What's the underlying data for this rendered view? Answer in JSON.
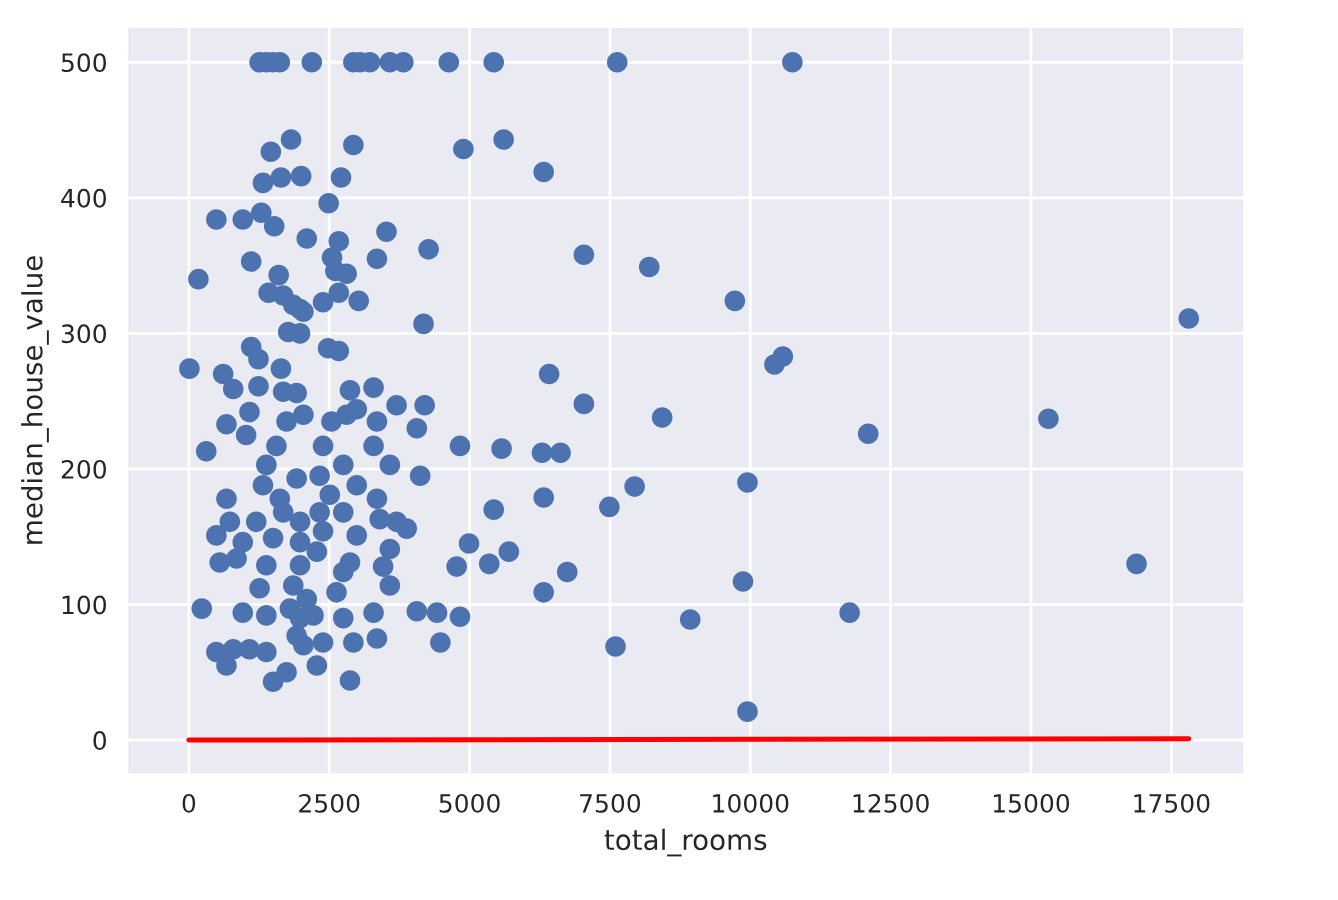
{
  "chart_data": {
    "type": "scatter",
    "xlabel": "total_rooms",
    "ylabel": "median_house_value",
    "xlim": [
      -1100,
      18800
    ],
    "ylim": [
      -25,
      526
    ],
    "xticks": [
      0,
      2500,
      5000,
      7500,
      10000,
      12500,
      15000,
      17500
    ],
    "yticks": [
      0,
      100,
      200,
      300,
      400,
      500
    ],
    "grid": true,
    "series": [
      {
        "marker": "circle",
        "color": "#4c72b0",
        "x": [
          1260,
          1380,
          1500,
          1620,
          2190,
          2930,
          3050,
          3225,
          3580,
          3820,
          4630,
          5430,
          7630,
          10750,
          5607,
          6320,
          7036,
          8200,
          9725,
          17810,
          6417,
          10430,
          10580,
          7036,
          8430,
          12100,
          15310,
          5570,
          6290,
          6620,
          9950,
          7940,
          6320,
          5430,
          7490,
          5700,
          5350,
          6740,
          6320,
          16880,
          9870,
          8930,
          11770,
          7600,
          9950,
          1820,
          1460,
          2930,
          4890,
          1320,
          1640,
          2000,
          2710,
          2490,
          490,
          960,
          1290,
          1520,
          2100,
          2670,
          3520,
          4270,
          2550,
          3350,
          1110,
          170,
          1600,
          2610,
          2810,
          1420,
          1680,
          1860,
          1980,
          2040,
          2390,
          2670,
          3025,
          4180,
          1770,
          1980,
          1110,
          1240,
          2480,
          2670,
          10,
          610,
          1640,
          790,
          1240,
          1680,
          1920,
          2870,
          3290,
          3700,
          4200,
          4060,
          3350,
          2990,
          2810,
          2540,
          1080,
          670,
          1020,
          1740,
          2040,
          310,
          1560,
          2390,
          4830,
          1380,
          1920,
          2330,
          2750,
          3290,
          3580,
          4120,
          1320,
          670,
          1620,
          2990,
          3350,
          2510,
          730,
          1200,
          1980,
          2330,
          2750,
          3400,
          3700,
          3880,
          490,
          960,
          1500,
          1980,
          2390,
          2990,
          3580,
          4990,
          550,
          850,
          1380,
          1980,
          2870,
          2750,
          3460,
          4770,
          1260,
          1860,
          2630,
          3580,
          230,
          960,
          1380,
          1800,
          2220,
          2750,
          3290,
          4060,
          4420,
          4830,
          490,
          790,
          1080,
          1380,
          1920,
          2040,
          2390,
          2930,
          3350,
          4480,
          670,
          1740,
          1500,
          2280,
          2870,
          1980,
          1680,
          2100,
          2280
        ],
        "values": [
          500,
          500,
          500,
          500,
          500,
          500,
          500,
          500,
          500,
          500,
          500,
          500,
          500,
          500,
          443,
          419,
          358,
          349,
          324,
          311,
          270,
          277,
          283,
          248,
          238,
          226,
          237,
          215,
          212,
          212,
          190,
          187,
          179,
          170,
          172,
          139,
          130,
          124,
          109,
          130,
          117,
          89,
          94,
          69,
          21,
          443,
          434,
          439,
          436,
          411,
          415,
          416,
          415,
          396,
          384,
          384,
          389,
          379,
          370,
          368,
          375,
          362,
          356,
          355,
          353,
          340,
          343,
          346,
          344,
          330,
          328,
          321,
          318,
          316,
          323,
          330,
          324,
          307,
          301,
          300,
          290,
          281,
          289,
          287,
          274,
          270,
          274,
          259,
          261,
          257,
          256,
          258,
          260,
          247,
          247,
          230,
          235,
          244,
          240,
          235,
          242,
          233,
          225,
          235,
          240,
          213,
          217,
          217,
          217,
          203,
          193,
          195,
          203,
          217,
          203,
          195,
          188,
          178,
          178,
          188,
          178,
          181,
          161,
          161,
          161,
          168,
          168,
          163,
          161,
          156,
          151,
          146,
          149,
          146,
          154,
          151,
          141,
          145,
          131,
          134,
          129,
          129,
          131,
          124,
          128,
          128,
          112,
          114,
          109,
          114,
          97,
          94,
          92,
          97,
          92,
          90,
          94,
          95,
          94,
          91,
          65,
          67,
          67,
          65,
          77,
          70,
          72,
          72,
          75,
          72,
          55,
          50,
          43,
          55,
          44,
          90,
          168,
          104,
          139
        ]
      },
      {
        "type": "line",
        "color": "#ff0000",
        "x": [
          0,
          17810
        ],
        "values": [
          0,
          1
        ]
      }
    ]
  }
}
